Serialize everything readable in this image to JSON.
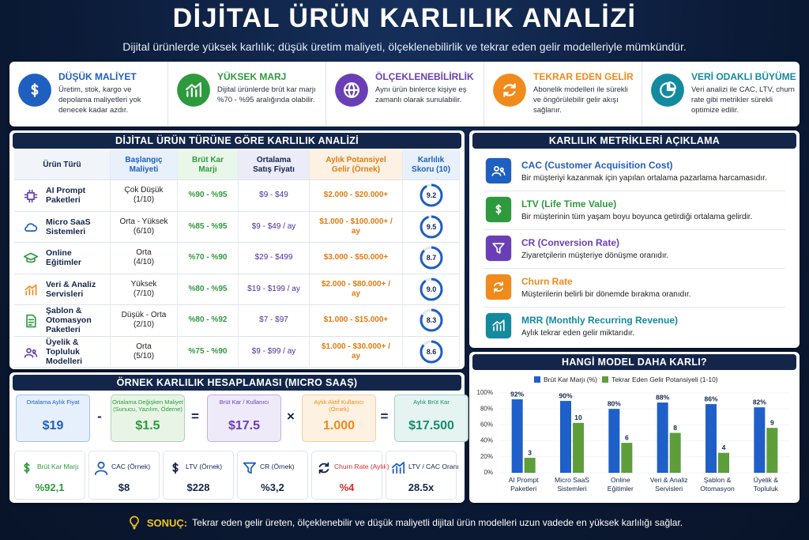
{
  "header": {
    "title": "DİJİTAL ÜRÜN KARLILIK ANALİZİ",
    "subtitle": "Dijital ürünlerde yüksek karlılık; düşük üretim maliyeti, ölçeklenebilirlik ve tekrar eden gelir modelleriyle mümkündür."
  },
  "features": [
    {
      "title": "DÜŞÜK MALİYET",
      "text": "Üretim, stok, kargo ve depolama maliyetleri yok denecek kadar azdır."
    },
    {
      "title": "YÜKSEK MARJ",
      "text": "Dijital ürünlerde brüt kar marjı %70 - %95 aralığında olabilir."
    },
    {
      "title": "ÖLÇEKLENEBİLİRLİK",
      "text": "Aynı ürün binlerce kişiye eş zamanlı olarak sunulabilir."
    },
    {
      "title": "TEKRAR EDEN GELİR",
      "text": "Abonelik modelleri ile sürekli ve öngörülebilir gelir akışı sağlanır."
    },
    {
      "title": "VERİ ODAKLI BÜYÜME",
      "text": "Veri analizi ile CAC, LTV, churn rate gibi metrikler sürekli optimize edilir."
    }
  ],
  "table": {
    "title": "DİJİTAL ÜRÜN TÜRÜNE GÖRE KARLILIK ANALİZİ",
    "headers": [
      "Ürün Türü",
      "Başlangıç\nMaliyeti",
      "Brüt Kar\nMarjı",
      "Ortalama\nSatış Fiyatı",
      "Aylık Potansiyel\nGelir (Örnek)",
      "Karlılık\nSkoru (10)"
    ],
    "rows": [
      {
        "name": "AI Prompt\nPaketleri",
        "cost": "Çok Düşük\n(1/10)",
        "margin": "%90 - %95",
        "price": "$9 - $49",
        "potential": "$2.000 - $20.000+"
      },
      {
        "name": "Micro SaaS\nSistemleri",
        "cost": "Orta - Yüksek\n(6/10)",
        "margin": "%85 - %95",
        "price": "$9 - $49 / ay",
        "potential": "$1.000 - $100.000+ /\nay"
      },
      {
        "name": "Online\nEğitimler",
        "cost": "Orta\n(4/10)",
        "margin": "%70 - %90",
        "price": "$29 - $499",
        "potential": "$3.000 - $50.000+"
      },
      {
        "name": "Veri & Analiz\nServisleri",
        "cost": "Yüksek\n(7/10)",
        "margin": "%80 - %95",
        "price": "$19 - $199 / ay",
        "potential": "$2.000 - $80.000+ /\nay"
      },
      {
        "name": "Şablon &\nOtomasyon Paketleri",
        "cost": "Düşük - Orta\n(2/10)",
        "margin": "%80 - %92",
        "price": "$7 - $97",
        "potential": "$1.000 - $15.000+"
      },
      {
        "name": "Üyelik & Topluluk\nModelleri",
        "cost": "Orta\n(5/10)",
        "margin": "%75 - %90",
        "price": "$9 - $99 / ay",
        "potential": "$1.000 - $30.000+ /\nay"
      }
    ],
    "scores": [
      9.2,
      9.5,
      8.7,
      9,
      8.3,
      8.6
    ],
    "score_labels": [
      "9.2",
      "9.5",
      "8.7",
      "9.0",
      "8.3",
      "8.6"
    ]
  },
  "metrics": {
    "title": "KARLILIK METRİKLERİ AÇIKLAMA",
    "items": [
      {
        "title": "CAC (Customer Acquisition Cost)",
        "text": "Bir müşteriyi kazanmak için yapılan ortalama pazarlama harcamasıdır."
      },
      {
        "title": "LTV (Life Time Value)",
        "text": "Bir müşterinin tüm yaşam boyu boyunca getirdiği ortalama gelirdir."
      },
      {
        "title": "CR (Conversion Rate)",
        "text": "Ziyaretçilerin müşteriye dönüşme oranıdır."
      },
      {
        "title": "Churn Rate",
        "text": "Müşterilerin belirli bir dönemde bırakma oranıdır."
      },
      {
        "title": "MRR (Monthly Recurring Revenue)",
        "text": "Aylık tekrar eden gelir miktarıdır."
      }
    ]
  },
  "example": {
    "title": "ÖRNEK KARLILIK HESAPLAMASI (MICRO SAAŞ)",
    "boxes": [
      {
        "label": "Ortalama Aylık Fiyat",
        "value": "$19"
      },
      {
        "label": "Ortalama Değişken Maliyet\n(Sunucu, Yazılım, Ödeme)",
        "value": "$1.5"
      },
      {
        "label": "Brüt Kar / Kullanıcı",
        "value": "$17.5"
      },
      {
        "label": "Aylık Aktif Kullanıcı\n(Örnek)",
        "value": "1.000"
      },
      {
        "label": "Aylık Brüt Kar",
        "value": "$17.500"
      }
    ],
    "operators": [
      "-",
      "=",
      "×",
      "="
    ],
    "kpis": [
      {
        "label": "Brüt Kar Marjı",
        "value": "%92,1"
      },
      {
        "label": "CAC (Örnek)",
        "value": "$8"
      },
      {
        "label": "LTV (Örnek)",
        "value": "$228"
      },
      {
        "label": "CR (Örnek)",
        "value": "%3,2"
      },
      {
        "label": "Churn Rate (Aylık)",
        "value": "%4"
      },
      {
        "label": "LTV / CAC Oranı",
        "value": "28.5x"
      }
    ]
  },
  "chart_data": {
    "type": "bar",
    "title": "HANGİ MODEL DAHA KARLI?",
    "categories": [
      "AI Prompt\nPaketleri",
      "Micro SaaS\nSistemleri",
      "Online\nEğitimler",
      "Veri & Analiz\nServisleri",
      "Şablon &\nOtomasyon",
      "Üyelik &\nTopluluk"
    ],
    "series": [
      {
        "name": "Brüt Kar Marjı (%)",
        "color": "#1f5fc8",
        "values": [
          92,
          90,
          80,
          88,
          86,
          82
        ],
        "value_labels": [
          "92%",
          "90%",
          "80%",
          "88%",
          "86%",
          "82%"
        ]
      },
      {
        "name": "Tekrar Eden Gelir Potansiyeli (1-10)",
        "color": "#5d9e3a",
        "values": [
          3,
          10,
          6,
          8,
          4,
          9
        ],
        "axis": "y2"
      }
    ],
    "ylim": [
      0,
      100
    ],
    "yticks": [
      {
        "value": 0,
        "label": "0%"
      },
      {
        "value": 20,
        "label": "20%"
      },
      {
        "value": 40,
        "label": "40%"
      },
      {
        "value": 60,
        "label": "60%"
      },
      {
        "value": 80,
        "label": "80%"
      },
      {
        "value": 100,
        "label": "100%"
      }
    ],
    "y2lim": [
      0,
      16
    ],
    "grid": true,
    "legend": "top"
  },
  "footer": {
    "label": "SONUÇ:",
    "text": "Tekrar eden gelir üreten, ölçeklenebilir ve düşük maliyetli dijital ürün modelleri uzun vadede en yüksek karlılığı sağlar."
  }
}
